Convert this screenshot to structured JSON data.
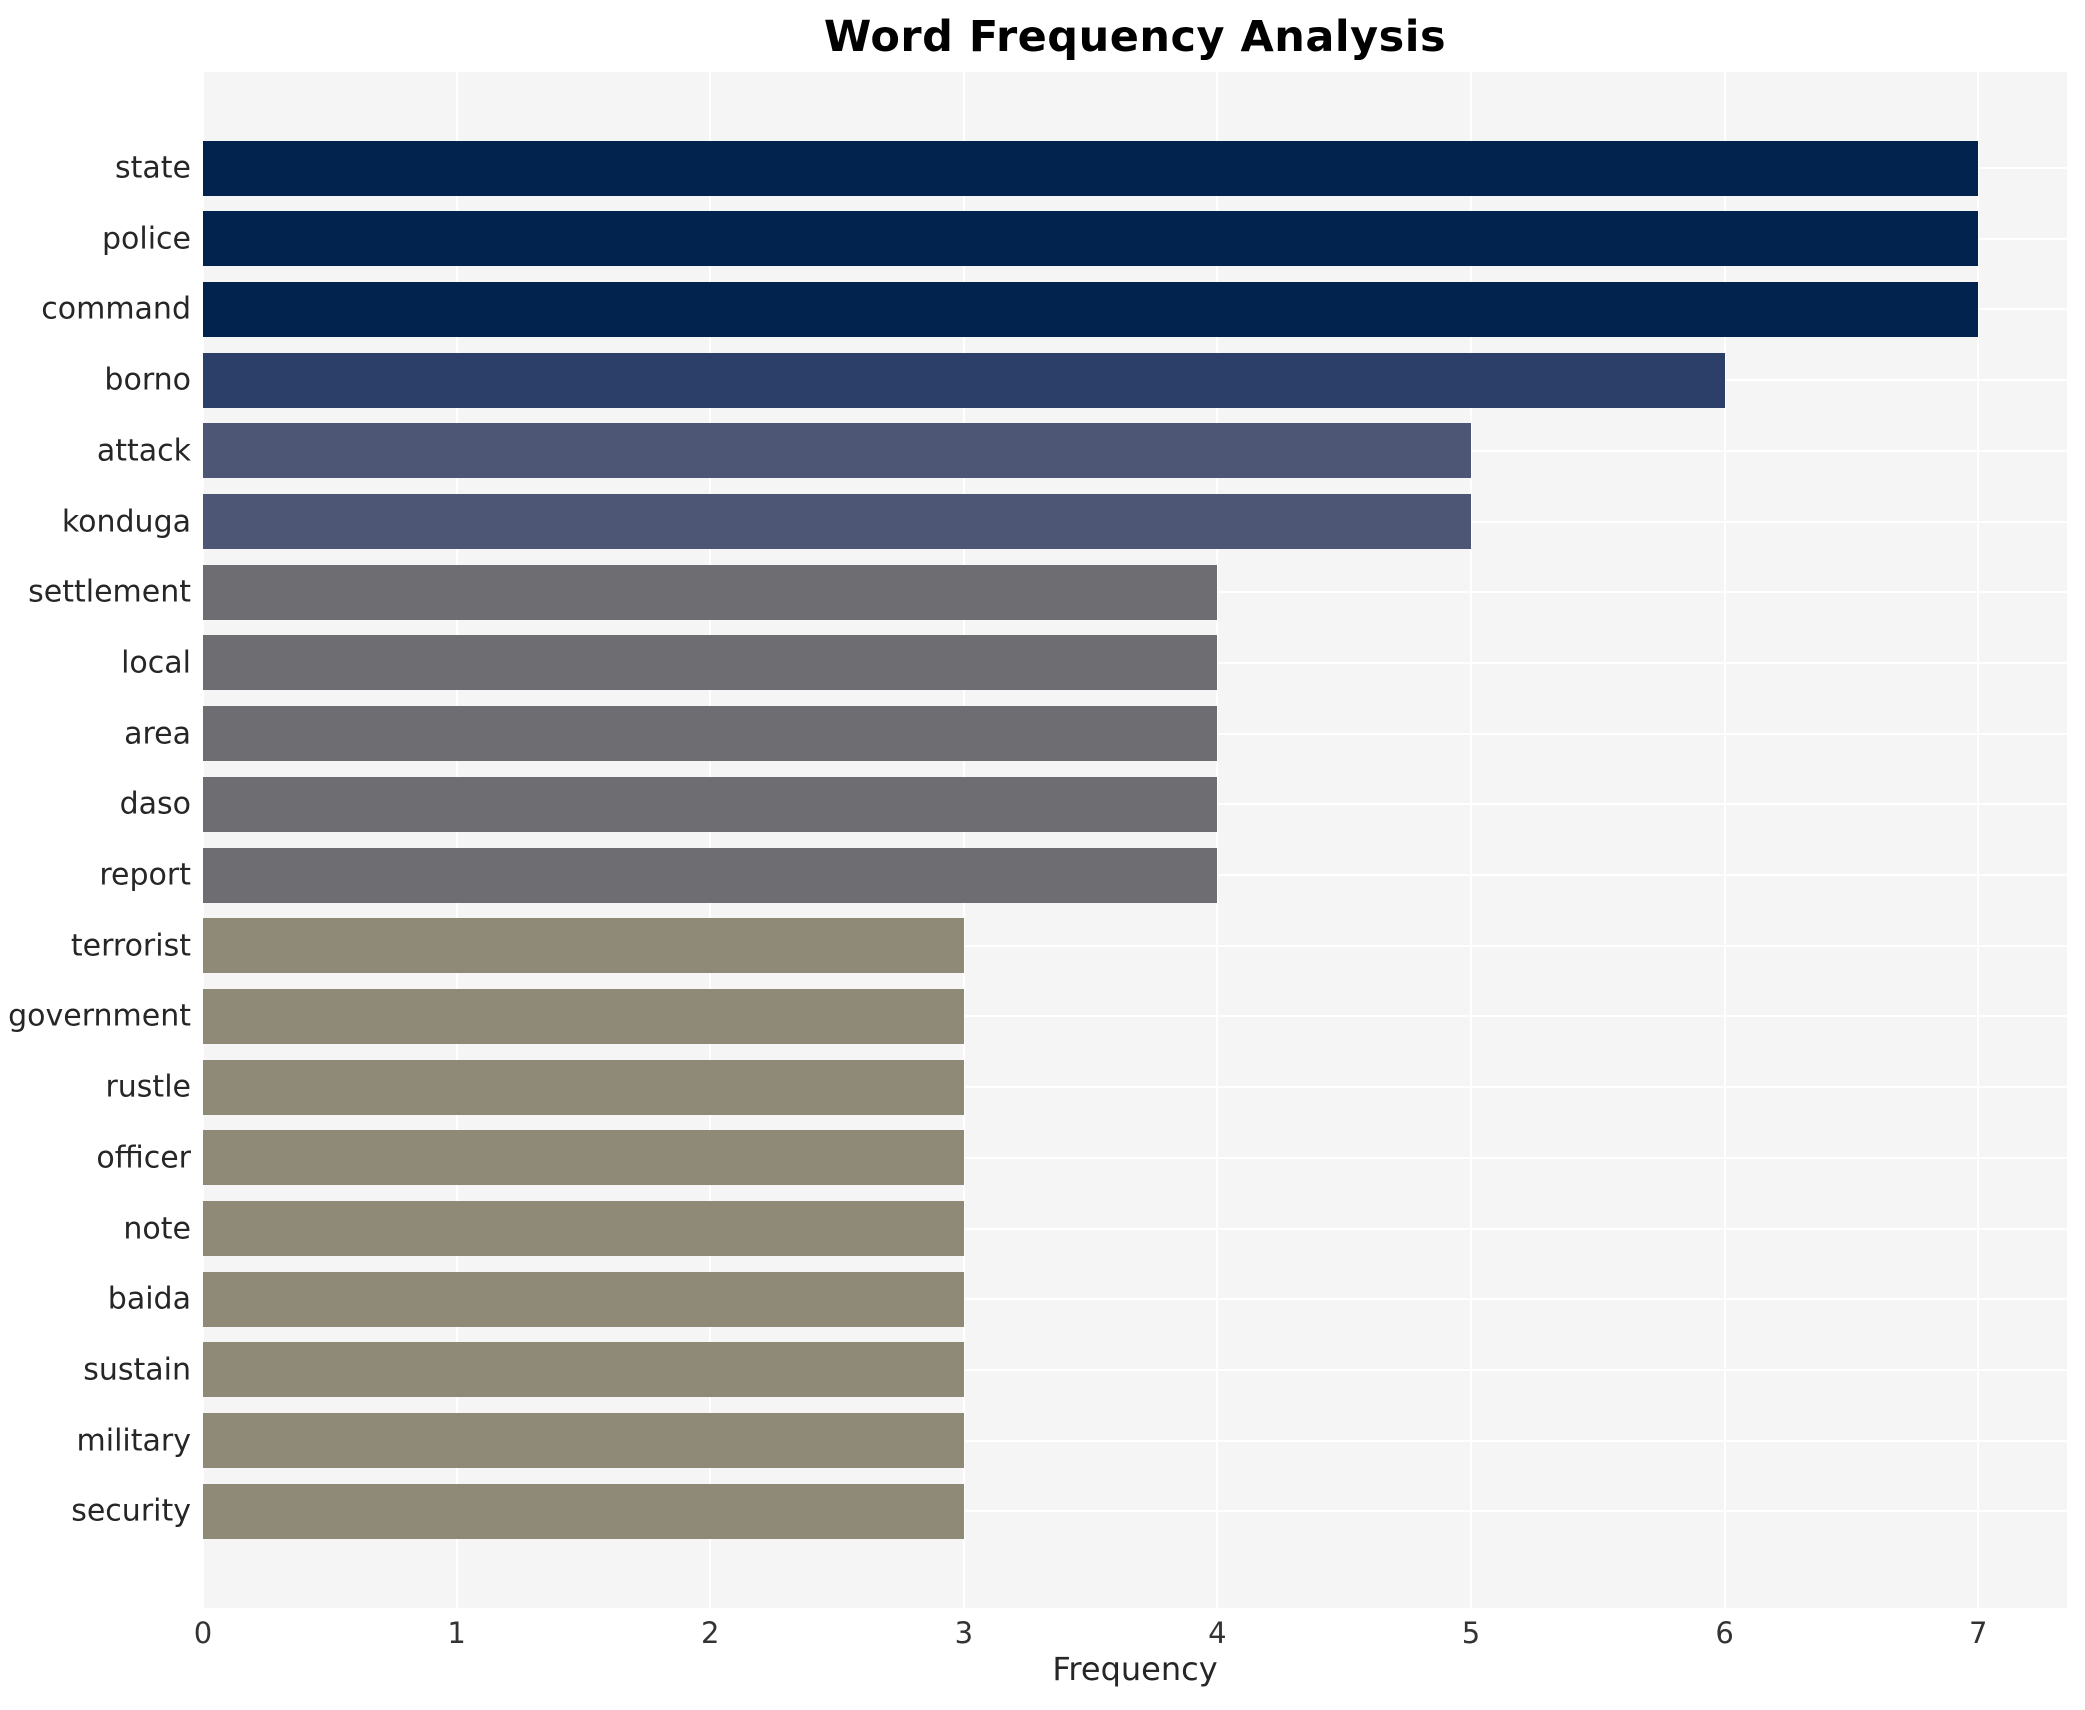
{
  "chart_data": {
    "type": "bar",
    "orientation": "horizontal",
    "title": "Word Frequency Analysis",
    "xlabel": "Frequency",
    "ylabel": "",
    "categories": [
      "state",
      "police",
      "command",
      "borno",
      "attack",
      "konduga",
      "settlement",
      "local",
      "area",
      "daso",
      "report",
      "terrorist",
      "government",
      "rustle",
      "officer",
      "note",
      "baida",
      "sustain",
      "military",
      "security"
    ],
    "values": [
      7,
      7,
      7,
      6,
      5,
      5,
      4,
      4,
      4,
      4,
      4,
      3,
      3,
      3,
      3,
      3,
      3,
      3,
      3,
      3
    ],
    "bar_colors": [
      "#02234e",
      "#02234e",
      "#02234e",
      "#2b3f69",
      "#4d5674",
      "#4d5674",
      "#6e6e72",
      "#6e6e72",
      "#6e6e72",
      "#6e6e72",
      "#6e6e72",
      "#8f8977",
      "#8f8977",
      "#8f8977",
      "#8f8977",
      "#8f8977",
      "#8f8977",
      "#8f8977",
      "#8f8977",
      "#8f8977"
    ],
    "xticks": [
      0,
      1,
      2,
      3,
      4,
      5,
      6,
      7
    ],
    "xlim": [
      0,
      7.35
    ],
    "grid": true,
    "legend": false,
    "colors": {
      "plot_bg": "#f5f5f6",
      "grid_color": "#ffffff",
      "title_color": "#000000",
      "label_color": "#262626",
      "tick_color": "#333333"
    }
  }
}
